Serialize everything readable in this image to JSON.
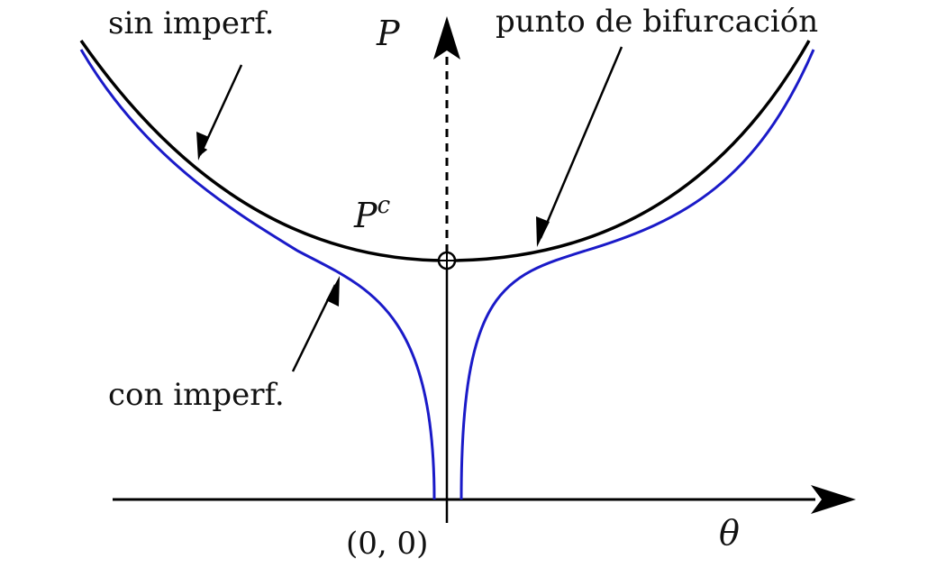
{
  "axes": {
    "y_label": "P",
    "x_label": "θ",
    "origin_label": "(0, 0)"
  },
  "labels": {
    "perfect": "sin imperf.",
    "imperfect": "con imperf.",
    "bifurcation": "punto de bifurcación",
    "critical_load_base": "P",
    "critical_load_sup": "c"
  },
  "colors": {
    "perfect": "#000000",
    "imperfect": "#1a1ac8",
    "axes": "#000000"
  }
}
